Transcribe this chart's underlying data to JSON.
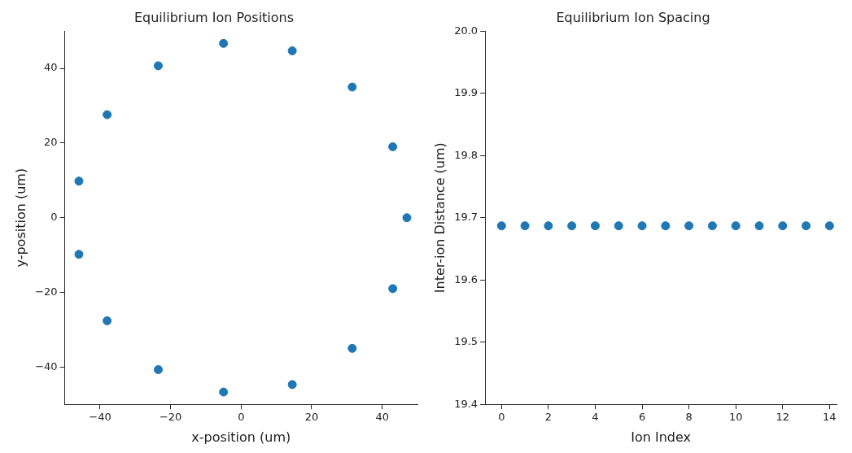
{
  "chart_data": [
    {
      "type": "scatter",
      "title": "Equilibrium Ion Positions",
      "xlabel": "x-position (um)",
      "ylabel": "y-position (um)",
      "x": [
        47,
        43,
        31.5,
        14.5,
        -5,
        -23.5,
        -38,
        -46,
        -46,
        -38,
        -23.5,
        -5,
        14.5,
        31.5,
        43
      ],
      "values": [
        0,
        19,
        35,
        44.7,
        46.7,
        40.7,
        27.6,
        9.8,
        -9.8,
        -27.6,
        -40.7,
        -46.7,
        -44.7,
        -35,
        -19
      ],
      "color": "#1f77b4",
      "xlim": [
        -50,
        50
      ],
      "ylim": [
        -50,
        50
      ],
      "xticks": [
        -40,
        -20,
        0,
        20,
        40
      ],
      "yticks": [
        -40,
        -20,
        0,
        20,
        40
      ],
      "grid": false,
      "marker": "circle"
    },
    {
      "type": "scatter",
      "title": "Equilibrium Ion Spacing",
      "xlabel": "Ion Index",
      "ylabel": "Inter-ion Distance (um)",
      "x": [
        0,
        1,
        2,
        3,
        4,
        5,
        6,
        7,
        8,
        9,
        10,
        11,
        12,
        13,
        14
      ],
      "values": [
        19.687,
        19.687,
        19.687,
        19.687,
        19.687,
        19.687,
        19.687,
        19.687,
        19.687,
        19.687,
        19.687,
        19.687,
        19.687,
        19.687,
        19.687
      ],
      "color": "#1f77b4",
      "xlim": [
        -0.7,
        14.3
      ],
      "ylim": [
        19.4,
        20.0
      ],
      "xticks": [
        0,
        2,
        4,
        6,
        8,
        10,
        12,
        14
      ],
      "yticks": [
        19.4,
        19.5,
        19.6,
        19.7,
        19.8,
        19.9,
        {
          "value": 20,
          "label": "20.0"
        }
      ],
      "grid": false,
      "marker": "circle"
    }
  ]
}
